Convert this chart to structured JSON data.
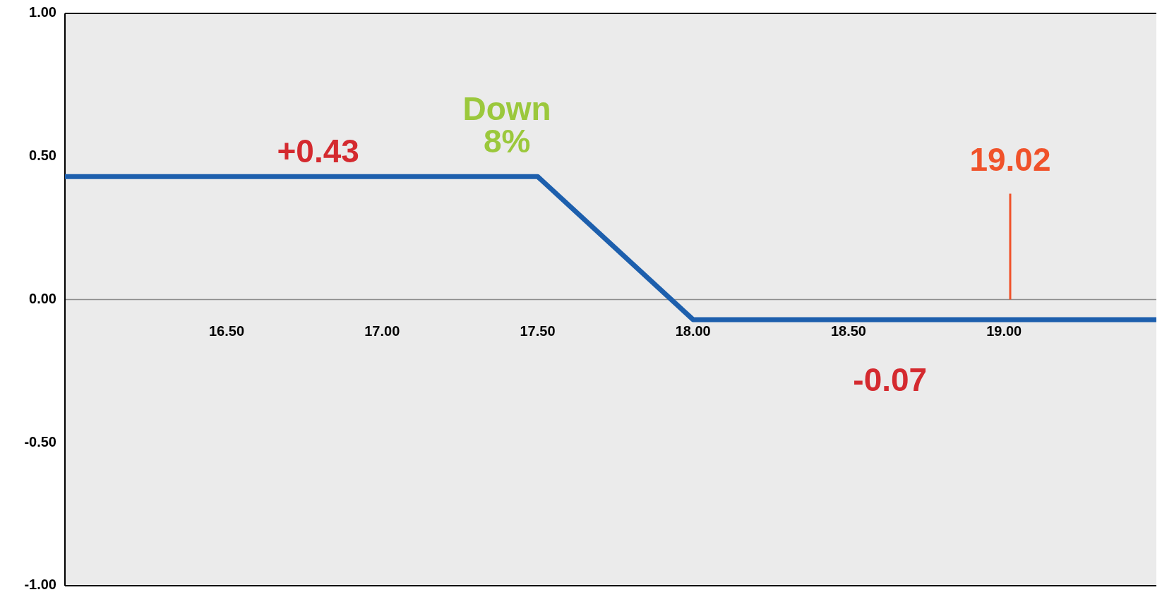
{
  "chart_data": {
    "type": "line",
    "x": [
      15.98,
      17.5,
      18.0,
      19.49
    ],
    "series": [
      {
        "color": "#1d5fad",
        "values": [
          0.43,
          0.43,
          -0.07,
          -0.07
        ]
      }
    ],
    "xlim": [
      15.98,
      19.49
    ],
    "ylim": [
      -1,
      1
    ],
    "xticks": [
      {
        "value": 16.5,
        "label": "16.50"
      },
      {
        "value": 17,
        "label": "17.00"
      },
      {
        "value": 17.5,
        "label": "17.50"
      },
      {
        "value": 18,
        "label": "18.00"
      },
      {
        "value": 18.5,
        "label": "18.50"
      },
      {
        "value": 19,
        "label": "19.00"
      }
    ],
    "yticks": [
      {
        "value": -1,
        "label": "-1.00"
      },
      {
        "value": -0.5,
        "label": "-0.50"
      },
      {
        "value": 0,
        "label": "0.00"
      },
      {
        "value": 0.5,
        "label": "0.50"
      },
      {
        "value": 1,
        "label": "1.00"
      }
    ],
    "grid": false,
    "marker": "none",
    "line_style": "solid",
    "ref_lines": [
      {
        "axis": "x",
        "value": 19.02,
        "label": "19.02",
        "color": "#f0522a"
      }
    ],
    "annotations": [
      "+0.43",
      "Down\n8%",
      "-0.07"
    ]
  }
}
